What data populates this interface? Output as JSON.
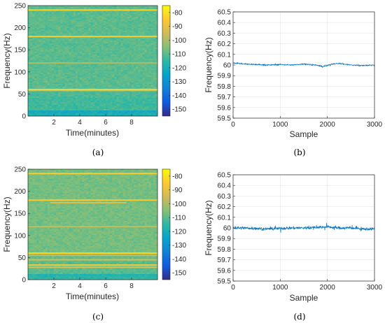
{
  "chart_data": [
    {
      "panel": "a",
      "type": "heatmap",
      "caption": "(a)",
      "xlabel": "Time(minutes)",
      "ylabel": "Frequency(Hz)",
      "xlim": [
        0,
        10
      ],
      "ylim": [
        0,
        250
      ],
      "xticks": [
        2,
        4,
        6,
        8
      ],
      "yticks": [
        0,
        50,
        100,
        150,
        200,
        250
      ],
      "colorbar": {
        "ticks": [
          -80,
          -90,
          -100,
          -110,
          -120,
          -130,
          -140,
          -150
        ],
        "range": [
          -155,
          -75
        ]
      },
      "background_db": -110,
      "low_freq_db": -122,
      "harmonic_lines": [
        {
          "freq": 60,
          "db": -80
        },
        {
          "freq": 58,
          "db": -92
        },
        {
          "freq": 180,
          "db": -84
        },
        {
          "freq": 240,
          "db": -83
        },
        {
          "freq": 120,
          "db": -100
        }
      ],
      "partial_lines": []
    },
    {
      "panel": "b",
      "type": "line",
      "caption": "(b)",
      "xlabel": "Sample",
      "ylabel": "Frequency(Hz)",
      "xlim": [
        0,
        3000
      ],
      "ylim": [
        59.5,
        60.5
      ],
      "xticks": [
        0,
        1000,
        2000,
        3000
      ],
      "yticks": [
        59.5,
        59.6,
        59.7,
        59.8,
        59.9,
        60,
        60.1,
        60.2,
        60.3,
        60.4,
        60.5
      ],
      "grid": true,
      "color": "#0072BD",
      "x": [
        0,
        250,
        500,
        750,
        1000,
        1250,
        1500,
        1750,
        1900,
        2000,
        2100,
        2250,
        2500,
        2750,
        3000
      ],
      "y": [
        60.02,
        60.01,
        60.005,
        60.0,
        60.005,
        60.0,
        60.01,
        60.0,
        59.985,
        59.995,
        60.01,
        60.015,
        60.0,
        59.995,
        60.0
      ],
      "noise_amplitude": 0.012
    },
    {
      "panel": "c",
      "type": "heatmap",
      "caption": "(c)",
      "xlabel": "Time(minutes)",
      "ylabel": "Frequency(Hz)",
      "xlim": [
        0,
        10
      ],
      "ylim": [
        0,
        250
      ],
      "xticks": [
        2,
        4,
        6,
        8
      ],
      "yticks": [
        0,
        50,
        100,
        150,
        200,
        250
      ],
      "colorbar": {
        "ticks": [
          -80,
          -90,
          -100,
          -110,
          -120,
          -130,
          -140,
          -150
        ],
        "range": [
          -155,
          -75
        ]
      },
      "background_db": -107,
      "low_freq_db": -118,
      "harmonic_lines": [
        {
          "freq": 60,
          "db": -82
        },
        {
          "freq": 55,
          "db": -96
        },
        {
          "freq": 45,
          "db": -94
        },
        {
          "freq": 33,
          "db": -85
        },
        {
          "freq": 28,
          "db": -92
        },
        {
          "freq": 120,
          "db": -97
        },
        {
          "freq": 180,
          "db": -85
        },
        {
          "freq": 240,
          "db": -84
        }
      ],
      "partial_lines": [
        {
          "freq": 174,
          "x0": 1.7,
          "x1": 7.6,
          "db": -92
        },
        {
          "freq": 120,
          "x0": 1.8,
          "x1": 2.8,
          "db": -98
        }
      ]
    },
    {
      "panel": "d",
      "type": "line",
      "caption": "(d)",
      "xlabel": "Sample",
      "ylabel": "Frequency(Hz)",
      "xlim": [
        0,
        3000
      ],
      "ylim": [
        59.5,
        60.5
      ],
      "xticks": [
        0,
        1000,
        2000,
        3000
      ],
      "yticks": [
        59.5,
        59.6,
        59.7,
        59.8,
        59.9,
        60,
        60.1,
        60.2,
        60.3,
        60.4,
        60.5
      ],
      "grid": true,
      "color": "#0072BD",
      "x": [
        0,
        250,
        500,
        750,
        1000,
        1250,
        1500,
        1750,
        2000,
        2250,
        2500,
        2750,
        3000
      ],
      "y": [
        60.0,
        60.0,
        59.995,
        59.99,
        59.995,
        60.0,
        60.0,
        60.005,
        60.01,
        60.0,
        60.0,
        59.99,
        59.99
      ],
      "noise_amplitude": 0.03
    }
  ]
}
